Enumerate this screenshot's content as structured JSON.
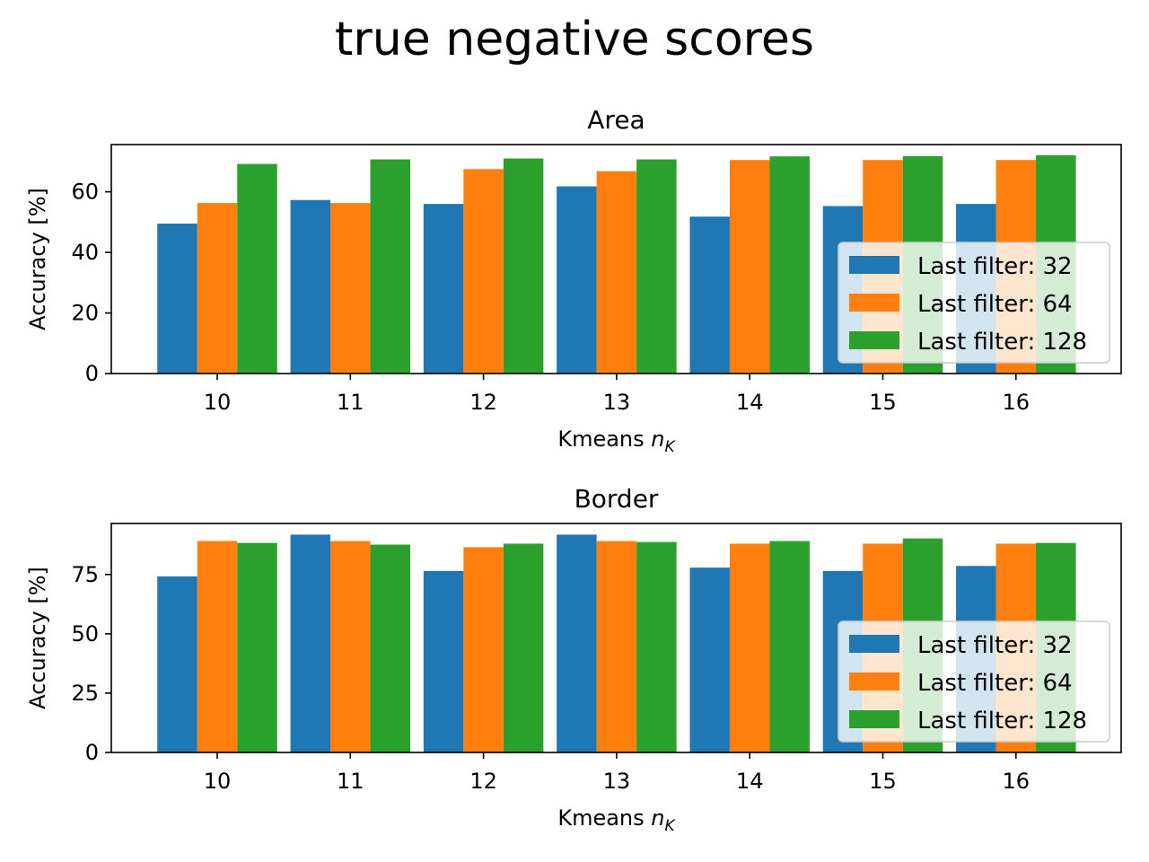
{
  "figure": {
    "title": "true negative scores"
  },
  "colors": {
    "Last filter: 32": "#1f77b4",
    "Last filter: 64": "#ff7f0e",
    "Last filter: 128": "#2ca02c"
  },
  "chart_data": [
    {
      "type": "bar",
      "title": "Area",
      "xlabel_text": "Kmeans ",
      "xlabel_math": "n",
      "xlabel_sub": "K",
      "ylabel": "Accuracy [%]",
      "categories": [
        "10",
        "11",
        "12",
        "13",
        "14",
        "15",
        "16"
      ],
      "yticks": [
        0,
        20,
        40,
        60
      ],
      "ylim": [
        0,
        75.6
      ],
      "grid": false,
      "legend_position": "lower-right",
      "series": [
        {
          "name": "Last filter: 32",
          "color": "#1f77b4",
          "values": [
            49.5,
            57.3,
            56.0,
            61.8,
            51.8,
            55.3,
            56.0
          ]
        },
        {
          "name": "Last filter: 64",
          "color": "#ff7f0e",
          "values": [
            56.3,
            56.3,
            67.5,
            66.8,
            70.5,
            70.5,
            70.5
          ]
        },
        {
          "name": "Last filter: 128",
          "color": "#2ca02c",
          "values": [
            69.2,
            70.7,
            71.0,
            70.7,
            71.7,
            71.8,
            72.1
          ]
        }
      ]
    },
    {
      "type": "bar",
      "title": "Border",
      "xlabel_text": "Kmeans ",
      "xlabel_math": "n",
      "xlabel_sub": "K",
      "ylabel": "Accuracy [%]",
      "categories": [
        "10",
        "11",
        "12",
        "13",
        "14",
        "15",
        "16"
      ],
      "yticks": [
        0,
        25,
        50,
        75
      ],
      "ylim": [
        0,
        96.5
      ],
      "grid": false,
      "legend_position": "lower-right",
      "series": [
        {
          "name": "Last filter: 32",
          "color": "#1f77b4",
          "values": [
            74.2,
            91.8,
            76.5,
            91.8,
            77.9,
            76.5,
            78.6
          ]
        },
        {
          "name": "Last filter: 64",
          "color": "#ff7f0e",
          "values": [
            89.1,
            89.1,
            86.5,
            89.1,
            88.0,
            88.0,
            88.0
          ]
        },
        {
          "name": "Last filter: 128",
          "color": "#2ca02c",
          "values": [
            88.3,
            87.6,
            88.0,
            88.7,
            89.1,
            90.2,
            88.3
          ]
        }
      ]
    }
  ]
}
